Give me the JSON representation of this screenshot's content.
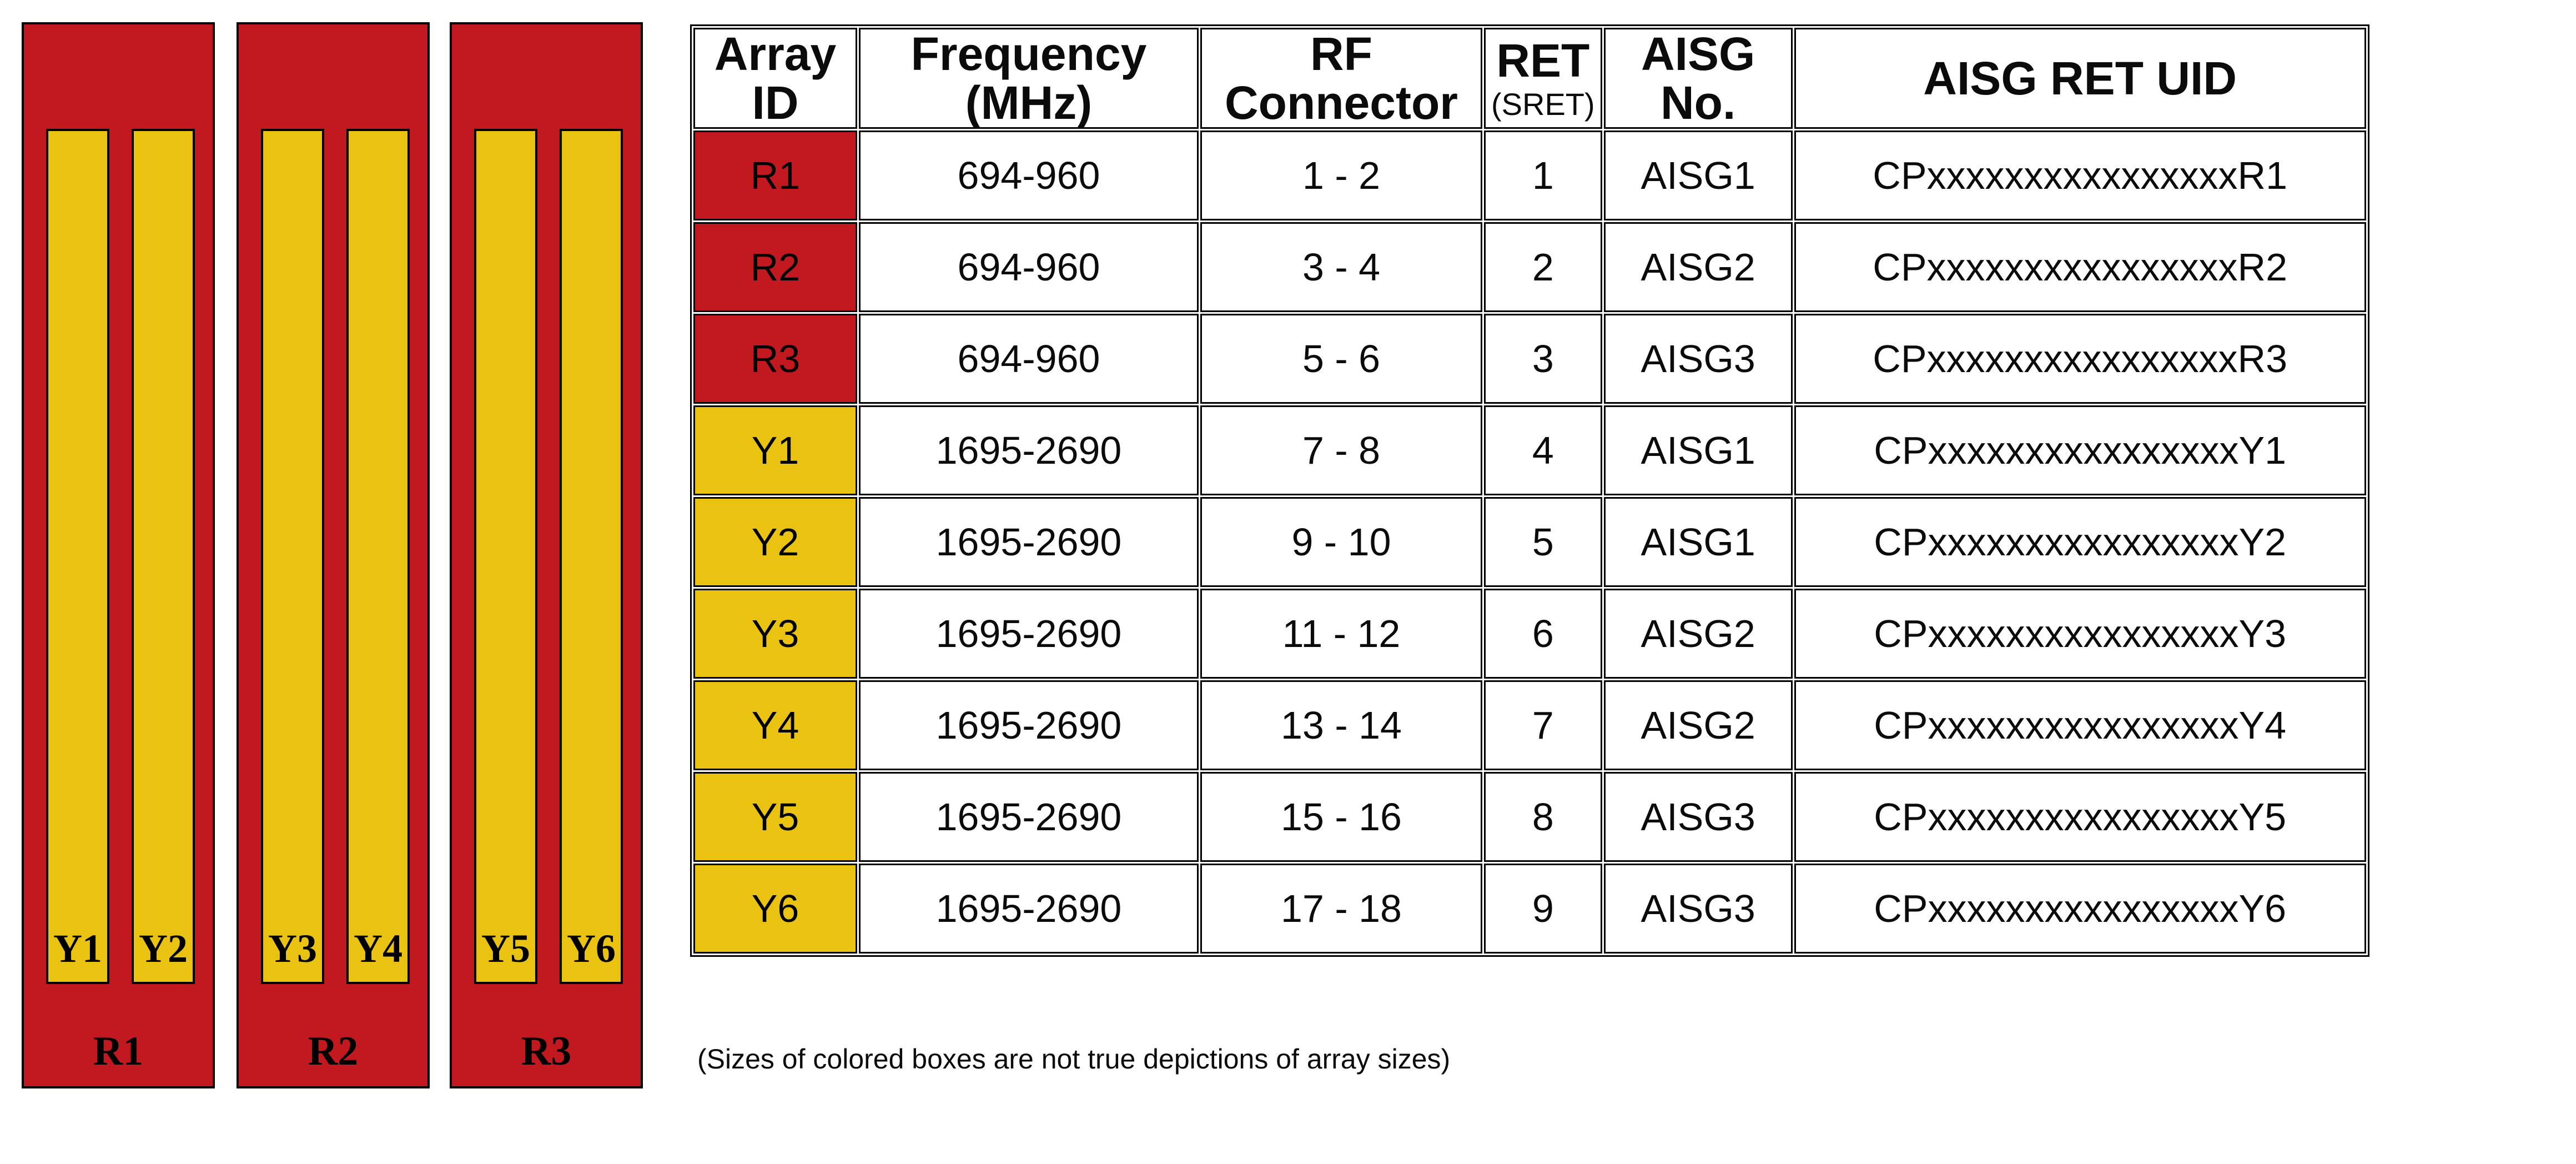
{
  "colors": {
    "red": "#c21820",
    "yellow": "#eac312"
  },
  "antenna": {
    "panels": [
      {
        "label": "R1",
        "arrays": [
          "Y1",
          "Y2"
        ]
      },
      {
        "label": "R2",
        "arrays": [
          "Y3",
          "Y4"
        ]
      },
      {
        "label": "R3",
        "arrays": [
          "Y5",
          "Y6"
        ]
      }
    ]
  },
  "table": {
    "headers": {
      "array_id": "Array ID",
      "frequency": "Frequency (MHz)",
      "rf_connector": "RF Connector",
      "ret": "RET",
      "ret_sub": "(SRET)",
      "aisg_no": "AISG No.",
      "aisg_ret_uid": "AISG RET UID"
    },
    "rows": [
      {
        "id": "R1",
        "color": "red",
        "frequency": "694-960",
        "rf_connector": "1 - 2",
        "ret": "1",
        "aisg_no": "AISG1",
        "uid": "CPxxxxxxxxxxxxxxxxR1"
      },
      {
        "id": "R2",
        "color": "red",
        "frequency": "694-960",
        "rf_connector": "3 - 4",
        "ret": "2",
        "aisg_no": "AISG2",
        "uid": "CPxxxxxxxxxxxxxxxxR2"
      },
      {
        "id": "R3",
        "color": "red",
        "frequency": "694-960",
        "rf_connector": "5 - 6",
        "ret": "3",
        "aisg_no": "AISG3",
        "uid": "CPxxxxxxxxxxxxxxxxR3"
      },
      {
        "id": "Y1",
        "color": "yellow",
        "frequency": "1695-2690",
        "rf_connector": "7 - 8",
        "ret": "4",
        "aisg_no": "AISG1",
        "uid": "CPxxxxxxxxxxxxxxxxY1"
      },
      {
        "id": "Y2",
        "color": "yellow",
        "frequency": "1695-2690",
        "rf_connector": "9 - 10",
        "ret": "5",
        "aisg_no": "AISG1",
        "uid": "CPxxxxxxxxxxxxxxxxY2"
      },
      {
        "id": "Y3",
        "color": "yellow",
        "frequency": "1695-2690",
        "rf_connector": "11 - 12",
        "ret": "6",
        "aisg_no": "AISG2",
        "uid": "CPxxxxxxxxxxxxxxxxY3"
      },
      {
        "id": "Y4",
        "color": "yellow",
        "frequency": "1695-2690",
        "rf_connector": "13 - 14",
        "ret": "7",
        "aisg_no": "AISG2",
        "uid": "CPxxxxxxxxxxxxxxxxY4"
      },
      {
        "id": "Y5",
        "color": "yellow",
        "frequency": "1695-2690",
        "rf_connector": "15 - 16",
        "ret": "8",
        "aisg_no": "AISG3",
        "uid": "CPxxxxxxxxxxxxxxxxY5"
      },
      {
        "id": "Y6",
        "color": "yellow",
        "frequency": "1695-2690",
        "rf_connector": "17 - 18",
        "ret": "9",
        "aisg_no": "AISG3",
        "uid": "CPxxxxxxxxxxxxxxxxY6"
      }
    ]
  },
  "footnote": "(Sizes of colored boxes are not true depictions of array sizes)"
}
